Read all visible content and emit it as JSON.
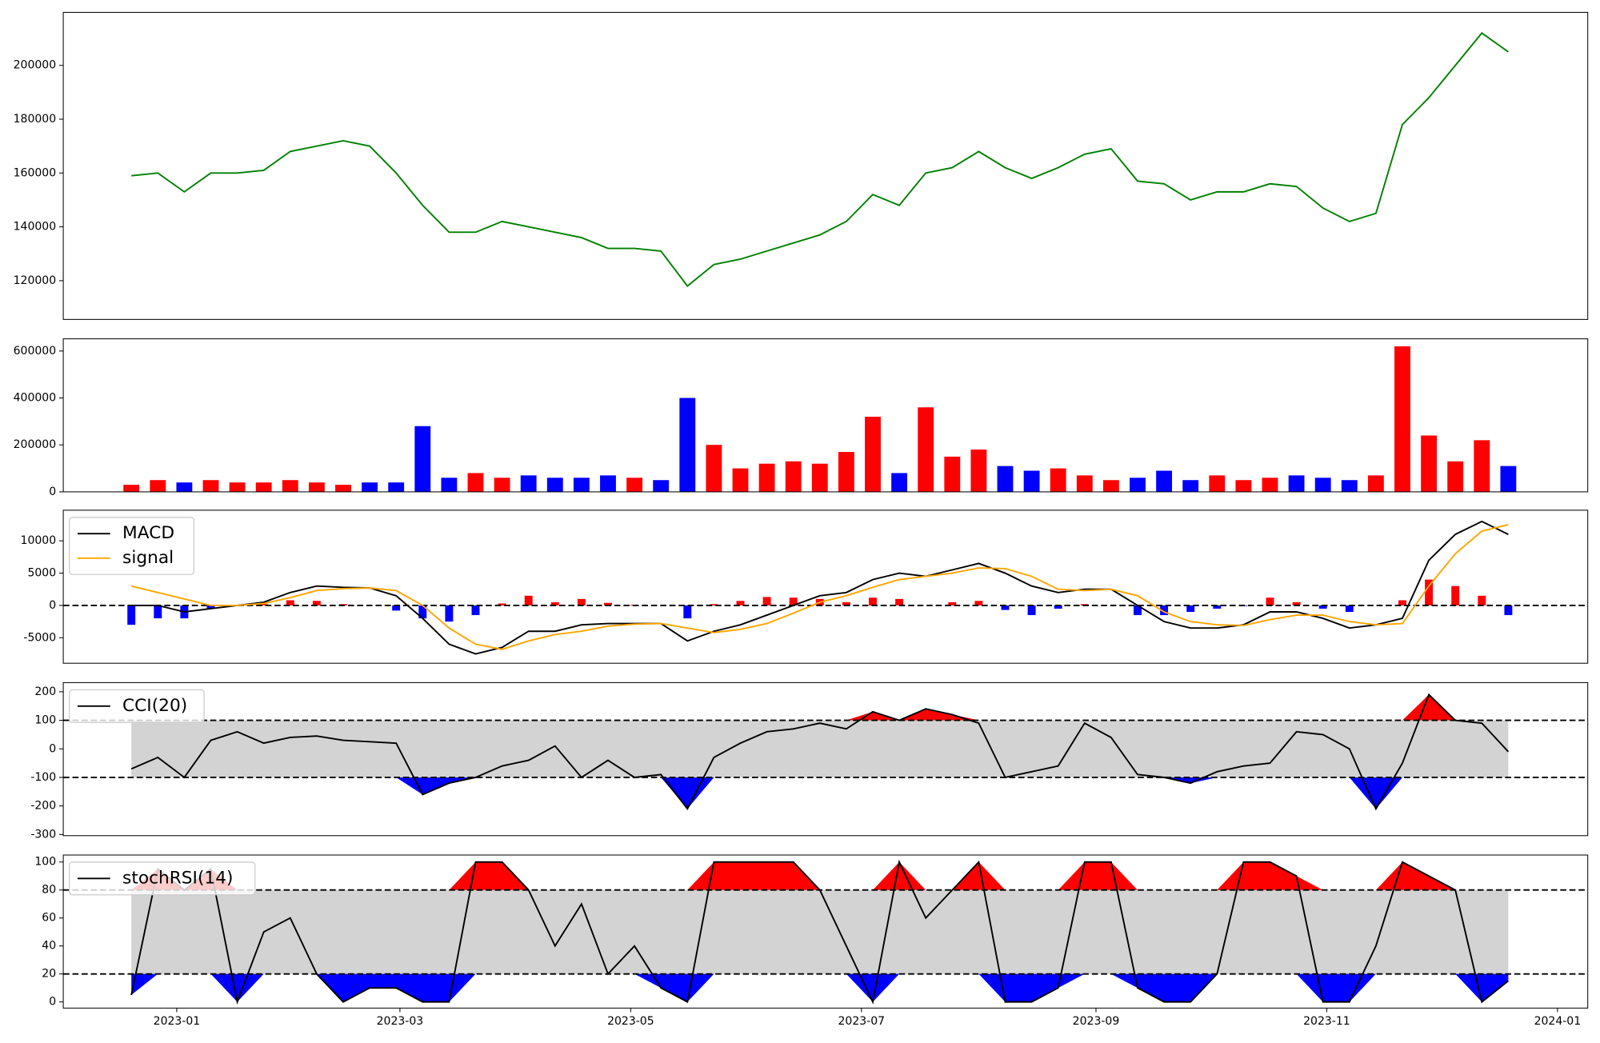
{
  "chart_data": [
    {
      "type": "line",
      "color": "#008000",
      "x": [
        "2022-12-20",
        "2022-12-27",
        "2023-01-03",
        "2023-01-10",
        "2023-01-17",
        "2023-01-24",
        "2023-01-31",
        "2023-02-07",
        "2023-02-14",
        "2023-02-21",
        "2023-02-28",
        "2023-03-07",
        "2023-03-14",
        "2023-03-21",
        "2023-03-28",
        "2023-04-04",
        "2023-04-11",
        "2023-04-18",
        "2023-04-25",
        "2023-05-02",
        "2023-05-09",
        "2023-05-16",
        "2023-05-23",
        "2023-05-30",
        "2023-06-06",
        "2023-06-13",
        "2023-06-20",
        "2023-06-27",
        "2023-07-04",
        "2023-07-11",
        "2023-07-18",
        "2023-07-25",
        "2023-08-01",
        "2023-08-08",
        "2023-08-15",
        "2023-08-22",
        "2023-08-29",
        "2023-09-05",
        "2023-09-12",
        "2023-09-19",
        "2023-09-26",
        "2023-10-03",
        "2023-10-10",
        "2023-10-17",
        "2023-10-24",
        "2023-10-31",
        "2023-11-07",
        "2023-11-14",
        "2023-11-21",
        "2023-11-28",
        "2023-12-05",
        "2023-12-12",
        "2023-12-19"
      ],
      "xlim": [
        "2022-12-02",
        "2024-01-09"
      ],
      "values": [
        159000,
        160000,
        153000,
        160000,
        160000,
        161000,
        168000,
        170000,
        172000,
        170000,
        160000,
        148000,
        138000,
        138000,
        142000,
        140000,
        138000,
        136000,
        132000,
        132000,
        131000,
        118000,
        126000,
        128000,
        131000,
        134000,
        137000,
        142000,
        152000,
        148000,
        160000,
        162000,
        168000,
        162000,
        158000,
        162000,
        167000,
        169000,
        157000,
        156000,
        150000,
        153000,
        153000,
        156000,
        155000,
        147000,
        142000,
        145000,
        178000,
        188000,
        200000,
        212000,
        205000
      ],
      "ylim": [
        105600,
        219700
      ],
      "yticks": [
        120000,
        140000,
        160000,
        180000,
        200000
      ]
    },
    {
      "type": "bar",
      "up_color": "#ff0000",
      "down_color": "#0000ff",
      "values": [
        30000,
        50000,
        40000,
        50000,
        40000,
        40000,
        50000,
        40000,
        30000,
        40000,
        40000,
        280000,
        60000,
        80000,
        60000,
        70000,
        60000,
        60000,
        70000,
        60000,
        50000,
        400000,
        200000,
        100000,
        120000,
        130000,
        120000,
        170000,
        320000,
        80000,
        360000,
        150000,
        180000,
        110000,
        90000,
        100000,
        70000,
        50000,
        60000,
        90000,
        50000,
        70000,
        50000,
        60000,
        70000,
        60000,
        50000,
        70000,
        620000,
        240000,
        130000,
        220000,
        110000
      ],
      "ylim": [
        0,
        652000
      ],
      "yticks": [
        0,
        200000,
        400000,
        600000
      ]
    },
    {
      "type": "line",
      "legend": "upper left",
      "series": [
        {
          "name": "MACD",
          "color": "#000000",
          "values": [
            0,
            0,
            -1000,
            -500,
            0,
            500,
            2000,
            3000,
            2800,
            2700,
            1500,
            -2000,
            -6000,
            -7500,
            -6500,
            -4000,
            -4000,
            -3000,
            -2800,
            -2800,
            -2800,
            -5500,
            -4000,
            -3000,
            -1500,
            0,
            1500,
            2000,
            4000,
            5000,
            4500,
            5500,
            6500,
            5000,
            3000,
            2000,
            2500,
            2500,
            0,
            -2500,
            -3500,
            -3500,
            -3000,
            -1000,
            -1000,
            -2000,
            -3500,
            -3000,
            -2000,
            7000,
            11000,
            13000,
            11000
          ]
        },
        {
          "name": "signal",
          "color": "#ffa500",
          "values": [
            3000,
            2000,
            1000,
            0,
            0,
            300,
            1200,
            2300,
            2600,
            2700,
            2300,
            0,
            -3500,
            -6000,
            -6800,
            -5500,
            -4500,
            -4000,
            -3200,
            -2900,
            -2800,
            -3500,
            -4200,
            -3700,
            -2800,
            -1200,
            500,
            1500,
            2800,
            4000,
            4500,
            5000,
            5800,
            5700,
            4500,
            2500,
            2300,
            2500,
            1500,
            -1000,
            -2500,
            -3000,
            -3100,
            -2200,
            -1500,
            -1500,
            -2500,
            -3000,
            -2800,
            3000,
            8000,
            11500,
            12500
          ]
        }
      ],
      "histogram": {
        "pos_color": "#ff0000",
        "neg_color": "#0000ff",
        "values": [
          -3000,
          -2000,
          -2000,
          -500,
          0,
          200,
          800,
          700,
          200,
          0,
          -800,
          -2000,
          -2500,
          -1500,
          300,
          1500,
          500,
          1000,
          400,
          100,
          0,
          -2000,
          200,
          700,
          1300,
          1200,
          1000,
          500,
          1200,
          1000,
          0,
          500,
          700,
          -700,
          -1500,
          -500,
          200,
          0,
          -1500,
          -1500,
          -1000,
          -500,
          -100,
          1200,
          500,
          -500,
          -1000,
          0,
          800,
          4000,
          3000,
          1500,
          -1500
        ]
      },
      "hlines": [
        0
      ],
      "ylim": [
        -8950,
        14740
      ],
      "yticks": [
        -5000,
        0,
        5000,
        10000
      ]
    },
    {
      "type": "line",
      "legend": "upper left",
      "series": [
        {
          "name": "CCI(20)",
          "color": "#000000",
          "values": [
            -70,
            -30,
            -100,
            30,
            60,
            20,
            40,
            45,
            30,
            25,
            20,
            -160,
            -120,
            -100,
            -60,
            -40,
            10,
            -100,
            -40,
            -100,
            -90,
            -210,
            -30,
            20,
            60,
            70,
            90,
            70,
            130,
            100,
            140,
            120,
            90,
            -100,
            -80,
            -60,
            90,
            40,
            -90,
            -100,
            -120,
            -80,
            -60,
            -50,
            60,
            50,
            0,
            -210,
            -50,
            190,
            100,
            90,
            -10
          ]
        }
      ],
      "hlines": [
        -100,
        100
      ],
      "fill": {
        "band": "#d3d3d3",
        "above": "#ff0000",
        "below": "#0000ff"
      },
      "ylim": [
        -304,
        232
      ],
      "yticks": [
        -300,
        -200,
        -100,
        0,
        100,
        200
      ]
    },
    {
      "type": "line",
      "legend": "upper left",
      "series": [
        {
          "name": "stochRSI(14)",
          "color": "#000000",
          "values": [
            5,
            95,
            80,
            95,
            0,
            50,
            60,
            20,
            0,
            10,
            10,
            0,
            0,
            100,
            100,
            80,
            40,
            70,
            20,
            40,
            10,
            0,
            100,
            100,
            100,
            100,
            80,
            40,
            0,
            100,
            60,
            80,
            100,
            0,
            0,
            10,
            100,
            100,
            10,
            0,
            0,
            20,
            100,
            100,
            90,
            0,
            0,
            40,
            100,
            90,
            80,
            0,
            15
          ]
        }
      ],
      "hlines": [
        20,
        80
      ],
      "fill": {
        "band": "#d3d3d3",
        "above": "#ff0000",
        "below": "#0000ff"
      },
      "ylim": [
        -4.4,
        105
      ],
      "yticks": [
        0,
        20,
        40,
        60,
        80,
        100
      ],
      "xticks": [
        {
          "value": "2023-01-01",
          "label": "2023-01"
        },
        {
          "value": "2023-03-01",
          "label": "2023-03"
        },
        {
          "value": "2023-05-01",
          "label": "2023-05"
        },
        {
          "value": "2023-07-01",
          "label": "2023-07"
        },
        {
          "value": "2023-09-01",
          "label": "2023-09"
        },
        {
          "value": "2023-11-01",
          "label": "2023-11"
        },
        {
          "value": "2024-01-01",
          "label": "2024-01"
        }
      ]
    }
  ]
}
